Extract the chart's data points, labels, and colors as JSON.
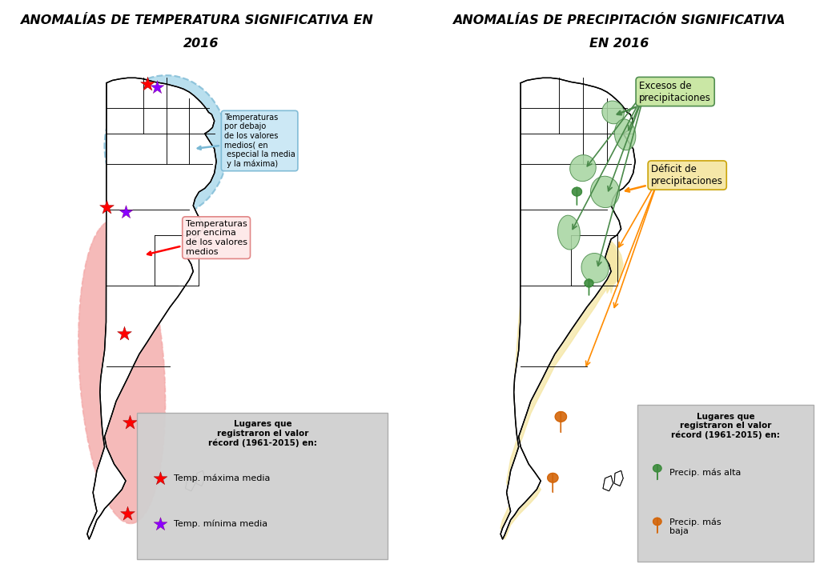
{
  "title_left_line1": "ANOMALÍAS DE TEMPERATURA SIGNIFICATIVA EN  ",
  "title_left_line2": "2016",
  "title_right_line1": "ANOMALÍAS DE PRECIPITACIÓN SIGNIFICATIVA",
  "title_right_line2": "EN 2016",
  "title_fontsize": 11.5,
  "bg_color": "#ffffff",
  "label_blue": "Temperaturas\npor debajo\nde los valores\nmedios( en\n especial la media\n y la máxima)",
  "label_pink": "Temperaturas\npor encima\nde los valores\nmedios",
  "label_green": "Excesos de\nprecipitaciones",
  "label_yellow": "Déficit de\nprecipitaciones",
  "legend_title_left": "Lugares que\nregistraron el valor\nrécord (1961-2015) en:",
  "legend_red_label": "Temp. máxima media",
  "legend_purple_label": "Temp. mínima media",
  "legend_title_right": "Lugares que\nregistraron el valor\nrécord (1961-2015) en:",
  "legend_green_label": "Precip. más alta",
  "legend_orange_label": "Precip. más\nbaja",
  "blue_fill": "#a8d8ea",
  "pink_fill": "#f4a9a8",
  "green_fill": "#a8d5a2",
  "yellow_fill": "#f5e6a3",
  "legend_box_color": "#d0d0d0",
  "blue_border": "#7ab8d4",
  "green_border": "#4a8a4a",
  "yellow_border": "#c8a000",
  "pink_label_border": "#e08080",
  "blue_label_bg": "#c8e6f5",
  "green_label_bg": "#c8e6a0",
  "yellow_label_bg": "#f5e6a3"
}
